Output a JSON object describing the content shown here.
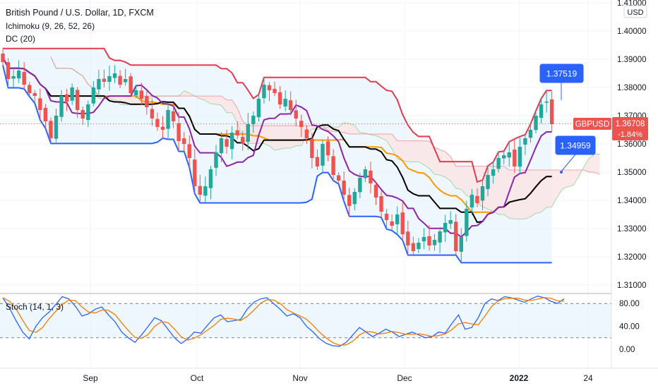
{
  "header": {
    "title": "British Pound / U.S. Dollar, 1D, FXCM",
    "indicator_ichimoku": "Ichimoku (9, 26, 52, 26)",
    "indicator_dc": "DC (20)",
    "stoch_label": "Stoch (14, 1, 3)",
    "currency": "USD"
  },
  "colors": {
    "up": "#26a69a",
    "down": "#ef5350",
    "dc_upper": "#e53a4f",
    "dc_lower": "#2962ff",
    "dc_fill": "#e3f2fd",
    "tenkan": "#8e24aa",
    "kijun": "#000000",
    "senkou_a": "#a5d6a7",
    "senkou_b": "#f08080",
    "cloud_bear": "#fbe4e4",
    "cloud_bull": "#e6f3ea",
    "current": "#ef5350",
    "stoch_k": "#2962ff",
    "stoch_d": "#f57c00",
    "callout": "#2962ff"
  },
  "price_scale": {
    "ticks": [
      "1.41000",
      "1.40000",
      "1.39000",
      "1.38000",
      "1.37000",
      "1.36000",
      "1.35000",
      "1.34000",
      "1.33000",
      "1.32000",
      "1.31000"
    ]
  },
  "stoch_scale": {
    "ticks": [
      "80.00",
      "40.00",
      "0.00"
    ]
  },
  "time_axis": {
    "labels": [
      {
        "text": "Sep",
        "bold": false
      },
      {
        "text": "Oct",
        "bold": false
      },
      {
        "text": "Nov",
        "bold": false
      },
      {
        "text": "Dec",
        "bold": false
      },
      {
        "text": "2022",
        "bold": true
      },
      {
        "text": "24",
        "bold": false
      }
    ]
  },
  "callouts": {
    "high": "1.37519",
    "low": "1.34959"
  },
  "current": {
    "symbol": "GBPUSD",
    "price": "1.36708",
    "change": "-1.84%"
  },
  "chart_data": {
    "type": "candlestick",
    "title": "British Pound / U.S. Dollar, 1D, FXCM",
    "ylim": [
      1.3095,
      1.4115
    ],
    "x_labels": [
      "Sep",
      "Oct",
      "Nov",
      "Dec",
      "2022",
      "24"
    ],
    "series": [
      {
        "name": "Ichimoku (9, 26, 52, 26)"
      },
      {
        "name": "DC (20)"
      }
    ],
    "stoch": {
      "name": "Stoch (14, 1, 3)",
      "ylim": [
        0,
        100
      ],
      "levels": [
        80,
        20
      ]
    },
    "close_anchors": [
      1.389,
      1.383,
      1.384,
      1.386,
      1.381,
      1.378,
      1.377,
      1.372,
      1.368,
      1.362,
      1.37,
      1.377,
      1.375,
      1.38,
      1.372,
      1.369,
      1.374,
      1.38,
      1.383,
      1.382,
      1.384,
      1.385,
      1.381,
      1.383,
      1.378,
      1.379,
      1.376,
      1.373,
      1.369,
      1.366,
      1.365,
      1.372,
      1.368,
      1.361,
      1.36,
      1.355,
      1.345,
      1.342,
      1.345,
      1.351,
      1.357,
      1.362,
      1.359,
      1.364,
      1.363,
      1.36,
      1.367,
      1.37,
      1.376,
      1.381,
      1.379,
      1.378,
      1.374,
      1.376,
      1.372,
      1.369,
      1.366,
      1.362,
      1.355,
      1.352,
      1.36,
      1.356,
      1.349,
      1.347,
      1.342,
      1.338,
      1.343,
      1.348,
      1.351,
      1.346,
      1.341,
      1.336,
      1.333,
      1.331,
      1.335,
      1.328,
      1.324,
      1.322,
      1.325,
      1.327,
      1.324,
      1.326,
      1.329,
      1.332,
      1.333,
      1.322,
      1.327,
      1.337,
      1.342,
      1.339,
      1.345,
      1.349,
      1.351,
      1.355,
      1.356,
      1.357,
      1.352,
      1.359,
      1.362,
      1.365,
      1.37,
      1.374,
      1.375,
      1.367
    ],
    "stoch_k_anchors": [
      90,
      72,
      50,
      30,
      18,
      40,
      55,
      65,
      78,
      92,
      88,
      75,
      58,
      62,
      70,
      74,
      60,
      48,
      30,
      20,
      12,
      25,
      40,
      55,
      50,
      35,
      20,
      10,
      18,
      30,
      28,
      42,
      55,
      60,
      48,
      50,
      52,
      70,
      82,
      88,
      90,
      80,
      70,
      58,
      62,
      55,
      40,
      30,
      18,
      10,
      6,
      5,
      12,
      25,
      38,
      30,
      22,
      28,
      35,
      30,
      22,
      26,
      30,
      25,
      20,
      22,
      30,
      28,
      45,
      60,
      35,
      38,
      55,
      80,
      88,
      85,
      92,
      90,
      86,
      82,
      88,
      93,
      90,
      84,
      80,
      88
    ]
  }
}
